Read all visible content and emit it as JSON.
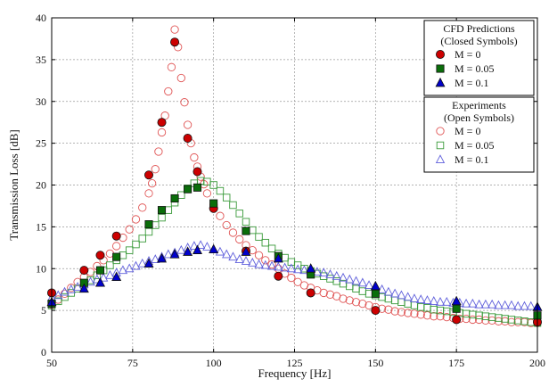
{
  "chart_data": {
    "type": "scatter",
    "xlabel": "Frequency [Hz]",
    "ylabel": "Transmission Loss [dB]",
    "xlim": [
      50,
      200
    ],
    "ylim": [
      0,
      40
    ],
    "xticks": [
      "50",
      "75",
      "100",
      "125",
      "150",
      "175",
      "200"
    ],
    "yticks": [
      "0",
      "5",
      "10",
      "15",
      "20",
      "25",
      "30",
      "35",
      "40"
    ],
    "grid": true,
    "legend_position": "top-right",
    "legend_groups": [
      {
        "heading": [
          "CFD Predictions",
          "(Closed Symbols)"
        ],
        "entries": [
          "M = 0",
          "M = 0.05",
          "M = 0.1"
        ]
      },
      {
        "heading": [
          "Experiments",
          "(Open Symbols)"
        ],
        "entries": [
          "M = 0",
          "M = 0.05",
          "M = 0.1"
        ]
      }
    ],
    "series": [
      {
        "group": "CFD Predictions",
        "name": "M = 0",
        "marker": "circle",
        "filled": true,
        "color": "#cc0000",
        "x": [
          50,
          60,
          65,
          70,
          80,
          84,
          88,
          92,
          95,
          100,
          110,
          120,
          130,
          150,
          175,
          200
        ],
        "y": [
          7.1,
          9.8,
          11.6,
          13.9,
          21.2,
          27.5,
          37.1,
          25.6,
          21.6,
          17.2,
          12.1,
          9.1,
          7.1,
          5.0,
          3.9,
          3.6
        ]
      },
      {
        "group": "CFD Predictions",
        "name": "M = 0.05",
        "marker": "square",
        "filled": true,
        "color": "#0a6e0a",
        "x": [
          50,
          60,
          65,
          70,
          80,
          84,
          88,
          92,
          95,
          100,
          110,
          120,
          130,
          150,
          175,
          200
        ],
        "y": [
          5.8,
          8.3,
          9.8,
          11.4,
          15.3,
          17.0,
          18.4,
          19.5,
          19.7,
          17.8,
          14.5,
          11.5,
          9.3,
          7.0,
          5.2,
          4.4
        ]
      },
      {
        "group": "CFD Predictions",
        "name": "M = 0.1",
        "marker": "triangle",
        "filled": true,
        "color": "#0000cc",
        "x": [
          50,
          60,
          65,
          70,
          80,
          84,
          88,
          92,
          95,
          100,
          110,
          120,
          130,
          150,
          175,
          200
        ],
        "y": [
          6.0,
          7.6,
          8.3,
          9.0,
          10.6,
          11.2,
          11.7,
          12.0,
          12.2,
          12.3,
          12.0,
          11.2,
          10.0,
          7.9,
          6.1,
          5.4
        ]
      },
      {
        "group": "Experiments",
        "name": "M = 0",
        "marker": "circle",
        "filled": false,
        "color": "#e05555",
        "x": [
          50,
          52,
          54,
          56,
          58,
          60,
          62,
          64,
          66,
          68,
          70,
          72,
          74,
          76,
          78,
          80,
          81,
          82,
          83,
          84,
          85,
          86,
          87,
          88,
          89,
          90,
          91,
          92,
          93,
          94,
          95,
          96,
          97,
          98,
          100,
          102,
          104,
          106,
          108,
          110,
          112,
          114,
          116,
          118,
          120,
          122,
          124,
          126,
          128,
          130,
          132,
          134,
          136,
          138,
          140,
          142,
          144,
          146,
          148,
          150,
          152,
          154,
          156,
          158,
          160,
          162,
          164,
          166,
          168,
          170,
          172,
          174,
          176,
          178,
          180,
          182,
          184,
          186,
          188,
          190,
          192,
          194,
          196,
          198,
          200
        ],
        "y": [
          5.7,
          6.3,
          7.0,
          7.7,
          8.4,
          9.0,
          9.6,
          10.3,
          11.0,
          11.8,
          12.7,
          13.7,
          14.7,
          15.9,
          17.3,
          19.0,
          20.2,
          21.9,
          24.0,
          26.3,
          28.3,
          31.2,
          34.1,
          38.6,
          36.5,
          32.8,
          29.9,
          27.2,
          25.0,
          23.3,
          22.2,
          21.0,
          20.1,
          19.0,
          17.6,
          16.3,
          15.2,
          14.3,
          13.5,
          12.8,
          12.2,
          11.6,
          11.0,
          10.5,
          10.0,
          9.4,
          8.9,
          8.4,
          8.0,
          7.7,
          7.4,
          7.1,
          6.9,
          6.7,
          6.4,
          6.2,
          6.0,
          5.8,
          5.6,
          5.4,
          5.2,
          5.1,
          4.9,
          4.8,
          4.7,
          4.6,
          4.5,
          4.4,
          4.3,
          4.3,
          4.2,
          4.1,
          4.0,
          4.0,
          3.9,
          3.9,
          3.8,
          3.8,
          3.7,
          3.7,
          3.6,
          3.6,
          3.6,
          3.5,
          3.5
        ]
      },
      {
        "group": "Experiments",
        "name": "M = 0.05",
        "marker": "square",
        "filled": false,
        "color": "#3a9a3a",
        "x": [
          50,
          52,
          54,
          56,
          58,
          60,
          62,
          64,
          66,
          68,
          70,
          72,
          74,
          76,
          78,
          80,
          82,
          84,
          86,
          88,
          90,
          92,
          94,
          96,
          98,
          100,
          102,
          104,
          106,
          108,
          110,
          112,
          114,
          116,
          118,
          120,
          122,
          124,
          126,
          128,
          130,
          132,
          134,
          136,
          138,
          140,
          142,
          144,
          146,
          148,
          150,
          152,
          154,
          156,
          158,
          160,
          162,
          164,
          166,
          168,
          170,
          172,
          174,
          176,
          178,
          180,
          182,
          184,
          186,
          188,
          190,
          192,
          194,
          196,
          198,
          200
        ],
        "y": [
          5.6,
          6.1,
          6.6,
          7.1,
          7.6,
          8.1,
          8.6,
          9.2,
          9.8,
          10.4,
          11.0,
          11.6,
          12.2,
          12.9,
          13.6,
          14.4,
          15.2,
          16.1,
          17.0,
          17.9,
          18.8,
          19.6,
          20.2,
          20.5,
          20.4,
          20.0,
          19.3,
          18.5,
          17.6,
          16.6,
          15.6,
          14.6,
          13.8,
          13.1,
          12.4,
          11.8,
          11.3,
          10.8,
          10.4,
          10.0,
          9.7,
          9.4,
          9.1,
          8.8,
          8.5,
          8.2,
          7.9,
          7.6,
          7.3,
          7.0,
          6.8,
          6.6,
          6.4,
          6.2,
          6.0,
          5.8,
          5.6,
          5.4,
          5.3,
          5.1,
          5.0,
          4.9,
          4.8,
          4.7,
          4.6,
          4.5,
          4.4,
          4.3,
          4.2,
          4.1,
          4.0,
          3.9,
          3.8,
          3.7,
          3.6,
          3.5
        ]
      },
      {
        "group": "Experiments",
        "name": "M = 0.1",
        "marker": "triangle",
        "filled": false,
        "color": "#5f5fdb",
        "x": [
          50,
          52,
          54,
          56,
          58,
          60,
          62,
          64,
          66,
          68,
          70,
          72,
          74,
          76,
          78,
          80,
          82,
          84,
          86,
          88,
          90,
          92,
          94,
          96,
          98,
          100,
          102,
          104,
          106,
          108,
          110,
          112,
          114,
          116,
          118,
          120,
          122,
          124,
          126,
          128,
          130,
          132,
          134,
          136,
          138,
          140,
          142,
          144,
          146,
          148,
          150,
          152,
          154,
          156,
          158,
          160,
          162,
          164,
          166,
          168,
          170,
          172,
          174,
          176,
          178,
          180,
          182,
          184,
          186,
          188,
          190,
          192,
          194,
          196,
          198,
          200
        ],
        "y": [
          6.5,
          6.8,
          7.2,
          7.5,
          7.8,
          8.1,
          8.4,
          8.7,
          8.9,
          9.2,
          9.5,
          9.8,
          10.0,
          10.3,
          10.6,
          10.9,
          11.1,
          11.4,
          11.7,
          11.9,
          12.2,
          12.5,
          12.7,
          12.8,
          12.6,
          12.3,
          12.0,
          11.7,
          11.4,
          11.1,
          10.9,
          10.7,
          10.5,
          10.4,
          10.3,
          10.2,
          10.1,
          10.0,
          9.9,
          9.8,
          9.7,
          9.6,
          9.5,
          9.3,
          9.1,
          8.9,
          8.7,
          8.5,
          8.3,
          8.0,
          7.8,
          7.5,
          7.2,
          7.0,
          6.8,
          6.6,
          6.4,
          6.3,
          6.2,
          6.1,
          6.0,
          6.0,
          5.9,
          5.9,
          5.8,
          5.8,
          5.7,
          5.7,
          5.7,
          5.6,
          5.6,
          5.6,
          5.5,
          5.5,
          5.5,
          5.4
        ]
      }
    ]
  }
}
